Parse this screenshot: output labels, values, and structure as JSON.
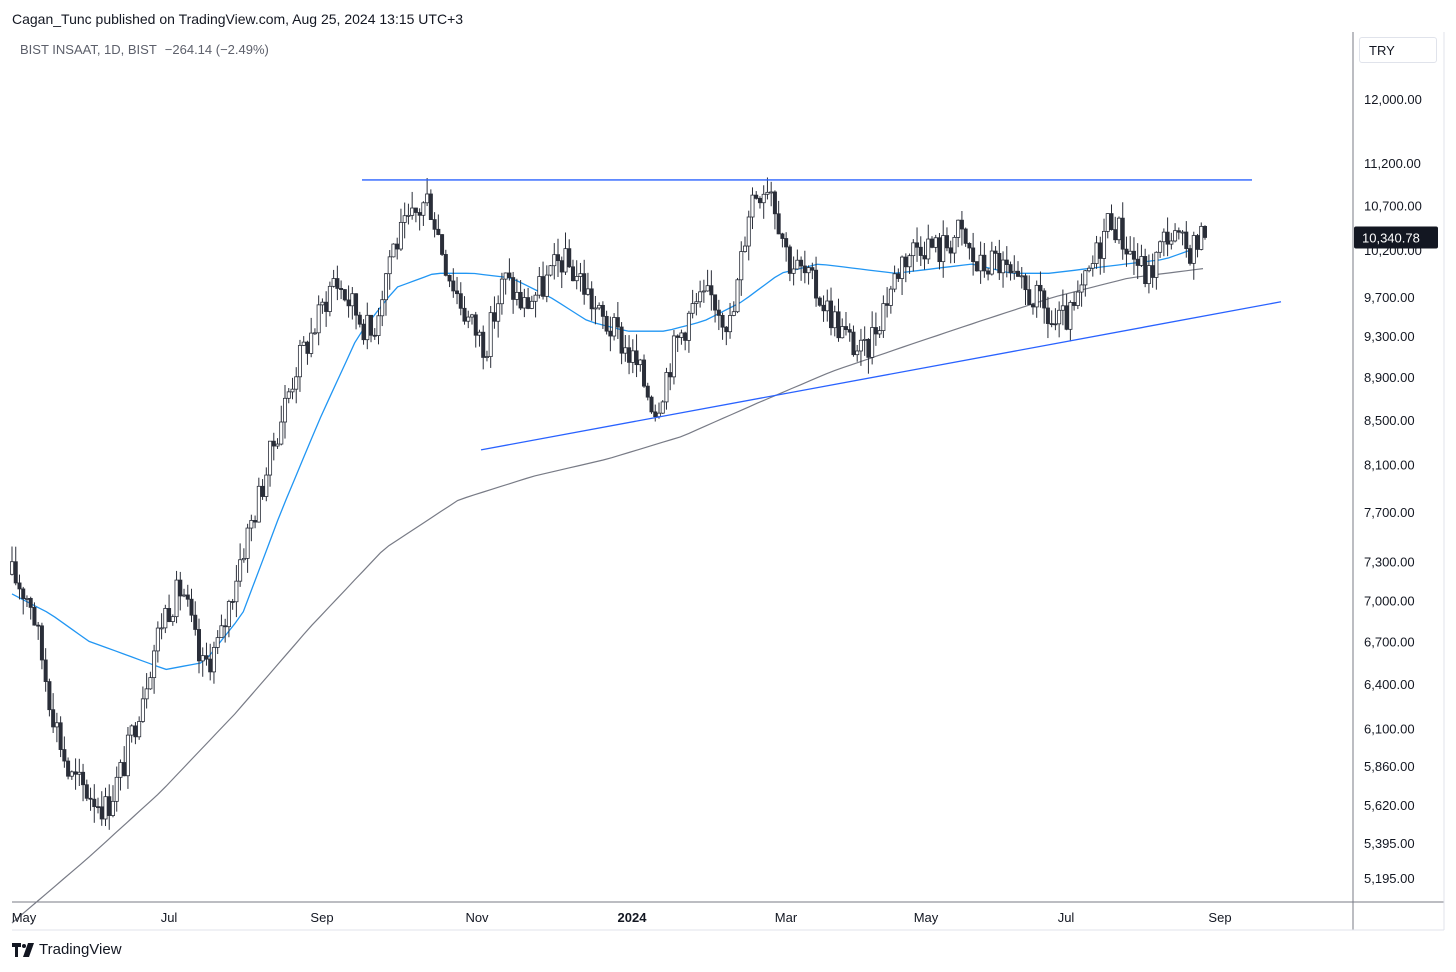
{
  "header": {
    "published_line": "Cagan_Tunc published on TradingView.com, Aug 25, 2024 13:15 UTC+3"
  },
  "legend": {
    "symbol_line": "BIST INSAAT, 1D, BIST",
    "change": "−264.14 (−2.49%)"
  },
  "currency": "TRY",
  "last_price_label": "10,340.78",
  "footer": {
    "brand": "TradingView"
  },
  "colors": {
    "candle": "#2a2e39",
    "ma_fast": "#2196f3",
    "ma_slow": "#787b86",
    "trendline": "#2962ff",
    "price_badge": "#131722"
  },
  "chart_data": {
    "type": "candlestick",
    "scale": "log",
    "x_ticks": [
      {
        "label": "May",
        "bold": false
      },
      {
        "label": "Jul",
        "bold": false
      },
      {
        "label": "Sep",
        "bold": false
      },
      {
        "label": "Nov",
        "bold": false
      },
      {
        "label": "2024",
        "bold": true
      },
      {
        "label": "Mar",
        "bold": false
      },
      {
        "label": "May",
        "bold": false
      },
      {
        "label": "Jul",
        "bold": false
      },
      {
        "label": "Sep",
        "bold": false
      }
    ],
    "y_ticks": [
      {
        "label": "12,000.00",
        "value": 12000
      },
      {
        "label": "11,200.00",
        "value": 11200
      },
      {
        "label": "10,700.00",
        "value": 10700
      },
      {
        "label": "10,200.00",
        "value": 10200
      },
      {
        "label": "9,700.00",
        "value": 9700
      },
      {
        "label": "9,300.00",
        "value": 9300
      },
      {
        "label": "8,900.00",
        "value": 8900
      },
      {
        "label": "8,500.00",
        "value": 8500
      },
      {
        "label": "8,100.00",
        "value": 8100
      },
      {
        "label": "7,700.00",
        "value": 7700
      },
      {
        "label": "7,300.00",
        "value": 7300
      },
      {
        "label": "7,000.00",
        "value": 7000
      },
      {
        "label": "6,700.00",
        "value": 6700
      },
      {
        "label": "6,400.00",
        "value": 6400
      },
      {
        "label": "6,100.00",
        "value": 6100
      },
      {
        "label": "5,860.00",
        "value": 5860
      },
      {
        "label": "5,620.00",
        "value": 5620
      },
      {
        "label": "5,395.00",
        "value": 5395
      },
      {
        "label": "5,195.00",
        "value": 5195
      }
    ],
    "last_close": 10340.78,
    "price_path": [
      7200,
      7000,
      6300,
      5800,
      5700,
      5600,
      5900,
      6400,
      6900,
      7100,
      6500,
      6700,
      7300,
      7800,
      8400,
      9000,
      9400,
      9900,
      9600,
      9300,
      10200,
      10500,
      10800,
      10000,
      9500,
      9200,
      9900,
      9600,
      9800,
      10100,
      9900,
      9500,
      9300,
      9000,
      8600,
      9200,
      9600,
      9700,
      9400,
      10800,
      11000,
      10100,
      9900,
      9600,
      9300,
      9100,
      9600,
      10100,
      10300,
      10200,
      10400,
      10000,
      10100,
      9800,
      9700,
      9400,
      9500,
      10000,
      10600,
      10200,
      9900,
      10400,
      10200,
      10340
    ],
    "price_path_points": 320,
    "ma_fast_path": [
      7050,
      6900,
      6700,
      6600,
      6500,
      6550,
      6900,
      7700,
      8500,
      9300,
      9800,
      9950,
      9950,
      9900,
      9700,
      9450,
      9350,
      9350,
      9450,
      9650,
      9950,
      10050,
      10000,
      9950,
      10000,
      10050,
      9950,
      9950,
      10000,
      10050,
      10100,
      10250
    ],
    "ma_slow_path": [
      4950,
      5300,
      5700,
      6200,
      6800,
      7400,
      7800,
      8000,
      8150,
      8350,
      8650,
      8950,
      9200,
      9450,
      9700,
      9900,
      10000
    ],
    "horizontal_resistance": {
      "value": 11000,
      "from_fraction": 0.28,
      "to_fraction": 0.99
    },
    "rising_support": {
      "start_value": 8230,
      "end_value": 9650,
      "from_fraction": 0.37,
      "to_fraction": 1.02
    }
  }
}
